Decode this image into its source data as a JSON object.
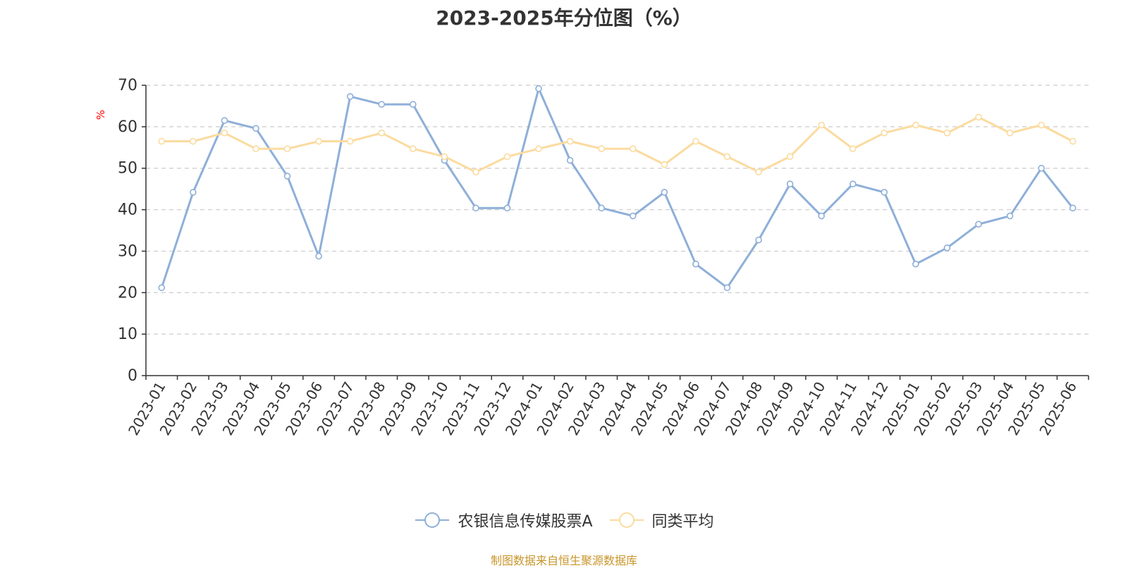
{
  "chart_data": {
    "type": "line",
    "title": "2023-2025年分位图（%）",
    "ylabel": "%",
    "xlabel": "",
    "ylim": [
      0,
      70
    ],
    "yticks": [
      0,
      10,
      20,
      30,
      40,
      50,
      60,
      70
    ],
    "grid": "horizontal-dashed",
    "legend_position": "bottom",
    "categories": [
      "2023-01",
      "2023-02",
      "2023-03",
      "2023-04",
      "2023-05",
      "2023-06",
      "2023-07",
      "2023-08",
      "2023-09",
      "2023-10",
      "2023-11",
      "2023-12",
      "2024-01",
      "2024-02",
      "2024-03",
      "2024-04",
      "2024-05",
      "2024-06",
      "2024-07",
      "2024-08",
      "2024-09",
      "2024-10",
      "2024-11",
      "2024-12",
      "2025-01",
      "2025-02",
      "2025-03",
      "2025-04",
      "2025-05",
      "2025-06"
    ],
    "series": [
      {
        "name": "农银信息传媒股票A",
        "color": "#8eafd8",
        "values": [
          21.2,
          44.2,
          61.5,
          59.6,
          48.1,
          28.8,
          67.3,
          65.4,
          65.4,
          51.9,
          40.4,
          40.4,
          69.2,
          51.9,
          40.4,
          38.5,
          44.2,
          26.9,
          21.2,
          32.7,
          46.2,
          38.5,
          46.2,
          44.2,
          26.9,
          30.8,
          36.5,
          38.5,
          50.0,
          40.4
        ]
      },
      {
        "name": "同类平均",
        "color": "#fbdb9f",
        "values": [
          56.5,
          56.5,
          58.5,
          54.7,
          54.7,
          56.5,
          56.5,
          58.5,
          54.7,
          52.8,
          49.1,
          52.8,
          54.7,
          56.5,
          54.7,
          54.7,
          50.9,
          56.5,
          52.8,
          49.1,
          52.8,
          60.4,
          54.7,
          58.5,
          60.4,
          58.5,
          62.3,
          58.5,
          60.4,
          56.5
        ]
      }
    ]
  },
  "source_note": "制图数据来自恒生聚源数据库",
  "colors": {
    "axis": "#333333",
    "grid": "#cccccc",
    "ylabel": "#ff0000",
    "source_note": "#c8952b"
  }
}
